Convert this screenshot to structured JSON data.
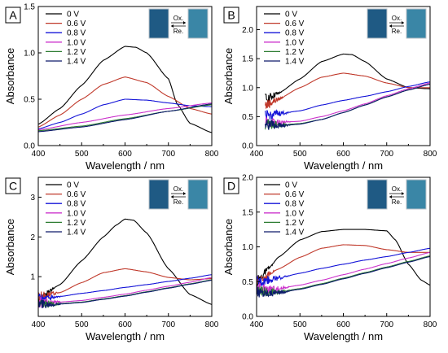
{
  "figure": {
    "x_axis_title": "Wavelength / nm",
    "y_axis_title": "Absorbance"
  },
  "colors": {
    "0 V": "#000000",
    "0.6 V": "#c0392b",
    "0.8 V": "#1515d8",
    "1.0 V": "#cc33cc",
    "1.2 V": "#2e7d32",
    "1.4 V": "#0d1a6b",
    "photo_reduced": "#1f5a84",
    "photo_oxidized": "#3a86a6",
    "photo_frame": "#b8c2c8"
  },
  "chart_data": [
    {
      "type": "line",
      "panel": "A",
      "xlabel": "Wavelength / nm",
      "ylabel": "Absorbance",
      "xlim": [
        400,
        800
      ],
      "ylim": [
        0,
        1.5
      ],
      "x_ticks": [
        400,
        500,
        600,
        700,
        800
      ],
      "y_ticks": [
        0.0,
        0.5,
        1.0,
        1.5
      ],
      "legend_position": "top-left",
      "photo_labels": {
        "oxidation": "Ox.",
        "reduction": "Re."
      },
      "series": [
        {
          "name": "0 V",
          "x": [
            400,
            450,
            500,
            550,
            600,
            625,
            650,
            700,
            720,
            750,
            800
          ],
          "y": [
            0.23,
            0.4,
            0.65,
            0.92,
            1.07,
            1.06,
            1.0,
            0.72,
            0.45,
            0.24,
            0.14
          ],
          "noise_below": 0
        },
        {
          "name": "0.6 V",
          "x": [
            400,
            450,
            500,
            550,
            600,
            650,
            700,
            750,
            800
          ],
          "y": [
            0.2,
            0.33,
            0.5,
            0.66,
            0.74,
            0.68,
            0.53,
            0.4,
            0.34
          ],
          "noise_below": 0
        },
        {
          "name": "0.8 V",
          "x": [
            400,
            450,
            500,
            550,
            600,
            650,
            700,
            750,
            800
          ],
          "y": [
            0.18,
            0.25,
            0.34,
            0.44,
            0.5,
            0.49,
            0.46,
            0.43,
            0.42
          ],
          "noise_below": 0
        },
        {
          "name": "1.0 V",
          "x": [
            400,
            500,
            600,
            700,
            800
          ],
          "y": [
            0.17,
            0.25,
            0.33,
            0.4,
            0.46
          ],
          "noise_below": 0
        },
        {
          "name": "1.2 V",
          "x": [
            400,
            500,
            600,
            700,
            800
          ],
          "y": [
            0.16,
            0.21,
            0.29,
            0.37,
            0.44
          ],
          "noise_below": 0
        },
        {
          "name": "1.4 V",
          "x": [
            400,
            500,
            600,
            700,
            800
          ],
          "y": [
            0.15,
            0.2,
            0.28,
            0.37,
            0.45
          ],
          "noise_below": 0
        }
      ]
    },
    {
      "type": "line",
      "panel": "B",
      "xlabel": "Wavelength / nm",
      "ylabel": "Absorbance",
      "xlim": [
        400,
        800
      ],
      "ylim": [
        0,
        2.4
      ],
      "x_ticks": [
        400,
        500,
        600,
        700,
        800
      ],
      "y_ticks": [
        0.0,
        0.5,
        1.0,
        1.5,
        2.0
      ],
      "legend_position": "top-left",
      "photo_labels": {
        "oxidation": "Ox.",
        "reduction": "Re."
      },
      "series": [
        {
          "name": "0 V",
          "x": [
            420,
            450,
            500,
            550,
            600,
            620,
            650,
            700,
            750,
            800
          ],
          "y": [
            0.8,
            0.9,
            1.15,
            1.45,
            1.58,
            1.57,
            1.45,
            1.15,
            1.0,
            0.98
          ],
          "noise_below": 460
        },
        {
          "name": "0.6 V",
          "x": [
            420,
            450,
            500,
            550,
            600,
            650,
            700,
            750,
            800
          ],
          "y": [
            0.7,
            0.8,
            1.0,
            1.18,
            1.25,
            1.2,
            1.08,
            1.0,
            1.0
          ],
          "noise_below": 465
        },
        {
          "name": "0.8 V",
          "x": [
            420,
            450,
            500,
            550,
            600,
            650,
            700,
            750,
            800
          ],
          "y": [
            0.5,
            0.55,
            0.6,
            0.7,
            0.78,
            0.85,
            0.93,
            1.02,
            1.1
          ],
          "noise_below": 480
        },
        {
          "name": "1.0 V",
          "x": [
            420,
            450,
            500,
            550,
            600,
            650,
            700,
            750,
            800
          ],
          "y": [
            0.4,
            0.4,
            0.42,
            0.5,
            0.6,
            0.72,
            0.86,
            0.98,
            1.08
          ],
          "noise_below": 480
        },
        {
          "name": "1.2 V",
          "x": [
            420,
            450,
            500,
            550,
            600,
            650,
            700,
            750,
            800
          ],
          "y": [
            0.38,
            0.35,
            0.38,
            0.45,
            0.57,
            0.7,
            0.84,
            0.96,
            1.06
          ],
          "noise_below": 480
        },
        {
          "name": "1.4 V",
          "x": [
            420,
            450,
            500,
            550,
            600,
            650,
            700,
            750,
            800
          ],
          "y": [
            0.37,
            0.34,
            0.37,
            0.45,
            0.57,
            0.7,
            0.84,
            0.96,
            1.06
          ],
          "noise_below": 480
        }
      ]
    },
    {
      "type": "line",
      "panel": "C",
      "xlabel": "Wavelength / nm",
      "ylabel": "Absorbance",
      "xlim": [
        400,
        800
      ],
      "ylim": [
        0,
        3.5
      ],
      "x_ticks": [
        400,
        500,
        600,
        700,
        800
      ],
      "y_ticks": [
        1,
        2,
        3
      ],
      "legend_position": "top-left",
      "photo_labels": {
        "oxidation": "Ox.",
        "reduction": "Re."
      },
      "series": [
        {
          "name": "0 V",
          "x": [
            400,
            450,
            500,
            550,
            580,
            600,
            620,
            650,
            700,
            750,
            800
          ],
          "y": [
            0.45,
            0.8,
            1.4,
            2.0,
            2.3,
            2.45,
            2.42,
            2.1,
            1.2,
            0.55,
            0.3
          ],
          "noise_below": 440
        },
        {
          "name": "0.6 V",
          "x": [
            400,
            450,
            500,
            550,
            600,
            650,
            700,
            750,
            800
          ],
          "y": [
            0.5,
            0.6,
            0.85,
            1.1,
            1.2,
            1.12,
            0.98,
            0.92,
            0.95
          ],
          "noise_below": 450
        },
        {
          "name": "0.8 V",
          "x": [
            400,
            450,
            500,
            550,
            600,
            650,
            700,
            750,
            800
          ],
          "y": [
            0.45,
            0.5,
            0.58,
            0.65,
            0.73,
            0.8,
            0.88,
            0.96,
            1.05
          ],
          "noise_below": 455
        },
        {
          "name": "1.0 V",
          "x": [
            400,
            450,
            500,
            550,
            600,
            650,
            700,
            750,
            800
          ],
          "y": [
            0.35,
            0.36,
            0.4,
            0.48,
            0.56,
            0.66,
            0.76,
            0.86,
            0.98
          ],
          "noise_below": 455
        },
        {
          "name": "1.2 V",
          "x": [
            400,
            450,
            500,
            550,
            600,
            650,
            700,
            750,
            800
          ],
          "y": [
            0.3,
            0.32,
            0.36,
            0.44,
            0.52,
            0.62,
            0.72,
            0.82,
            0.92
          ],
          "noise_below": 455
        },
        {
          "name": "1.4 V",
          "x": [
            400,
            450,
            500,
            550,
            600,
            650,
            700,
            750,
            800
          ],
          "y": [
            0.3,
            0.31,
            0.35,
            0.43,
            0.51,
            0.61,
            0.71,
            0.81,
            0.91
          ],
          "noise_below": 455
        }
      ]
    },
    {
      "type": "line",
      "panel": "D",
      "xlabel": "Wavelength / nm",
      "ylabel": "Absorbance",
      "xlim": [
        400,
        800
      ],
      "ylim": [
        0,
        2.0
      ],
      "x_ticks": [
        400,
        500,
        600,
        700,
        800
      ],
      "y_ticks": [
        0.0,
        0.5,
        1.0,
        1.5,
        2.0
      ],
      "legend_position": "top-left",
      "photo_labels": {
        "oxidation": "Ox.",
        "reduction": "Re."
      },
      "series": [
        {
          "name": "0 V",
          "x": [
            400,
            430,
            450,
            500,
            550,
            600,
            650,
            700,
            720,
            750,
            780,
            800
          ],
          "y": [
            0.5,
            0.7,
            0.85,
            1.1,
            1.22,
            1.25,
            1.25,
            1.23,
            1.1,
            0.75,
            0.52,
            0.45
          ],
          "noise_below": 440
        },
        {
          "name": "0.6 V",
          "x": [
            400,
            450,
            500,
            550,
            600,
            650,
            700,
            750,
            800
          ],
          "y": [
            0.5,
            0.68,
            0.85,
            0.98,
            1.03,
            1.02,
            0.96,
            0.92,
            0.92
          ],
          "noise_below": 445
        },
        {
          "name": "0.8 V",
          "x": [
            400,
            450,
            500,
            550,
            600,
            650,
            700,
            750,
            800
          ],
          "y": [
            0.5,
            0.55,
            0.62,
            0.69,
            0.75,
            0.81,
            0.86,
            0.92,
            0.98
          ],
          "noise_below": 480
        },
        {
          "name": "1.0 V",
          "x": [
            400,
            450,
            500,
            550,
            600,
            650,
            700,
            750,
            800
          ],
          "y": [
            0.4,
            0.4,
            0.45,
            0.52,
            0.6,
            0.68,
            0.76,
            0.84,
            0.92
          ],
          "noise_below": 480
        },
        {
          "name": "1.2 V",
          "x": [
            400,
            450,
            500,
            550,
            600,
            650,
            700,
            750,
            800
          ],
          "y": [
            0.36,
            0.35,
            0.4,
            0.47,
            0.55,
            0.63,
            0.71,
            0.79,
            0.87
          ],
          "noise_below": 480
        },
        {
          "name": "1.4 V",
          "x": [
            400,
            450,
            500,
            550,
            600,
            650,
            700,
            750,
            800
          ],
          "y": [
            0.35,
            0.34,
            0.39,
            0.46,
            0.54,
            0.62,
            0.7,
            0.78,
            0.86
          ],
          "noise_below": 480
        }
      ]
    }
  ]
}
